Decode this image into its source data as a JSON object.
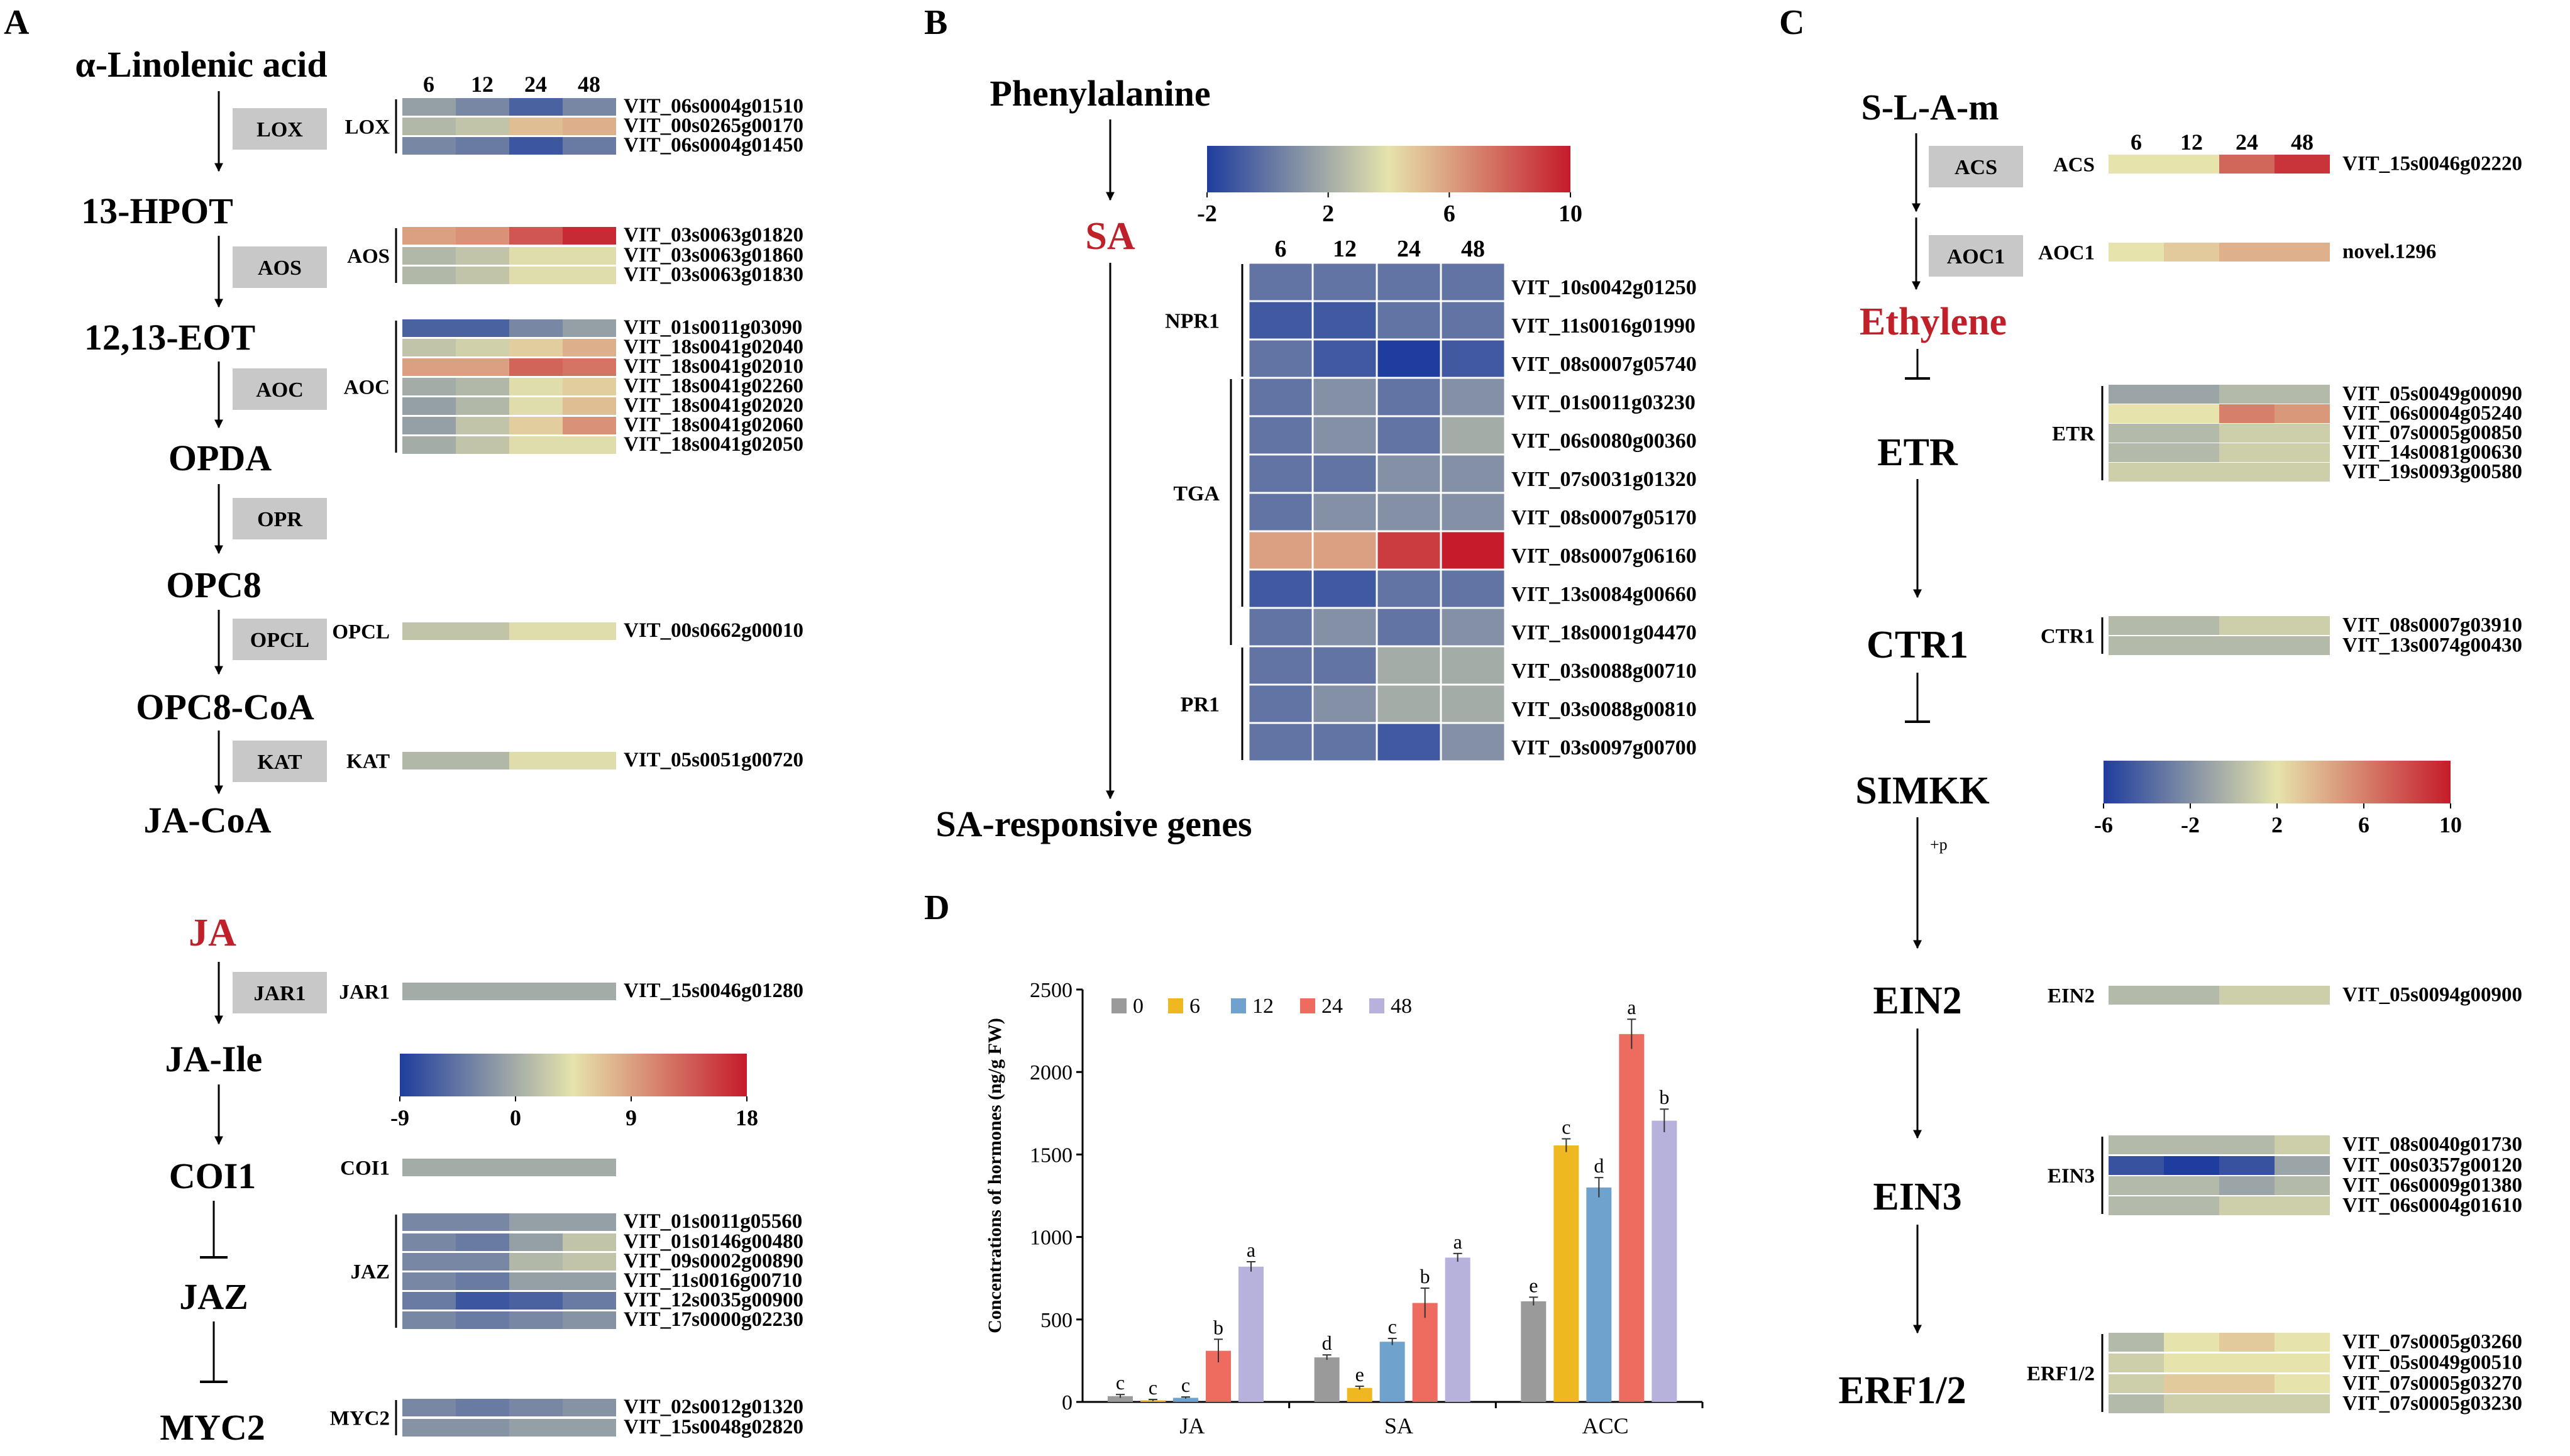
{
  "panels": {
    "A": "A",
    "B": "B",
    "C": "C",
    "D": "D"
  },
  "colors": {
    "scale_blue": "#1f3d9e",
    "scale_mid": "#e6e3ac",
    "scale_red": "#c51b2a",
    "label_red": "#c0202a",
    "enzyme_box": "#c8c8c8",
    "bar_0": "#9a9a9a",
    "bar_6": "#f0b820",
    "bar_12": "#6fa3cd",
    "bar_24": "#ee6b60",
    "bar_48": "#b6b2dc"
  },
  "heat_timepoints": [
    "6",
    "12",
    "24",
    "48"
  ],
  "panel_a": {
    "metabolites": [
      "α-Linolenic acid",
      "13-HPOT",
      "12,13-EOT",
      "OPDA",
      "OPC8",
      "OPC8-CoA",
      "JA-CoA",
      "JA",
      "JA-Ile",
      "COI1",
      "JAZ",
      "MYC2"
    ],
    "enzymes": [
      "LOX",
      "AOS",
      "AOC",
      "OPR",
      "OPCL",
      "KAT",
      "JAR1"
    ],
    "scale": {
      "ticks": [
        "-9",
        "0",
        "9",
        "18"
      ],
      "min": -9,
      "max": 18
    },
    "groups": [
      {
        "label": "LOX",
        "genes": [
          {
            "id": "VIT_06s0004g01510",
            "v": [
              -1,
              -3,
              -6,
              -3
            ]
          },
          {
            "id": "VIT_00s0265g00170",
            "v": [
              1,
              2,
              7,
              8
            ]
          },
          {
            "id": "VIT_06s0004g01450",
            "v": [
              -3,
              -4,
              -7,
              -4
            ]
          }
        ]
      },
      {
        "label": "AOS",
        "genes": [
          {
            "id": "VIT_03s0063g01820",
            "v": [
              9,
              10,
              14,
              17
            ]
          },
          {
            "id": "VIT_03s0063g01860",
            "v": [
              1,
              2,
              4,
              4
            ]
          },
          {
            "id": "VIT_03s0063g01830",
            "v": [
              1,
              2,
              4,
              4
            ]
          }
        ]
      },
      {
        "label": "AOC",
        "genes": [
          {
            "id": "VIT_01s0011g03090",
            "v": [
              -6,
              -6,
              -3,
              -1
            ]
          },
          {
            "id": "VIT_18s0041g02040",
            "v": [
              2,
              3,
              6,
              8
            ]
          },
          {
            "id": "VIT_18s0041g02010",
            "v": [
              9,
              9,
              13,
              12
            ]
          },
          {
            "id": "VIT_18s0041g02260",
            "v": [
              0,
              1,
              4,
              6
            ]
          },
          {
            "id": "VIT_18s0041g02020",
            "v": [
              -1,
              1,
              4,
              7
            ]
          },
          {
            "id": "VIT_18s0041g02060",
            "v": [
              -1,
              2,
              6,
              10
            ]
          },
          {
            "id": "VIT_18s0041g02050",
            "v": [
              0,
              2,
              4,
              4
            ]
          }
        ]
      },
      {
        "label": "OPCL",
        "genes": [
          {
            "id": "VIT_00s0662g00010",
            "v": [
              2,
              2,
              4,
              4
            ]
          }
        ]
      },
      {
        "label": "KAT",
        "genes": [
          {
            "id": "VIT_05s0051g00720",
            "v": [
              1,
              1,
              4,
              4
            ]
          }
        ]
      },
      {
        "label": "JAR1",
        "genes": [
          {
            "id": "VIT_15s0046g01280",
            "v": [
              0,
              0,
              0,
              0
            ]
          }
        ]
      },
      {
        "label": "COI1",
        "genes": [
          {
            "id": "",
            "v": [
              0,
              0,
              0,
              0
            ]
          }
        ]
      },
      {
        "label": "JAZ",
        "genes": [
          {
            "id": "VIT_01s0011g05560",
            "v": [
              -3,
              -3,
              -1,
              -1
            ]
          },
          {
            "id": "VIT_01s0146g00480",
            "v": [
              -3,
              -4,
              -1,
              2
            ]
          },
          {
            "id": "VIT_09s0002g00890",
            "v": [
              -3,
              -3,
              1,
              2
            ]
          },
          {
            "id": "VIT_11s0016g00710",
            "v": [
              -3,
              -4,
              -1,
              -1
            ]
          },
          {
            "id": "VIT_12s0035g00900",
            "v": [
              -4,
              -7,
              -6,
              -4
            ]
          },
          {
            "id": "VIT_17s0000g02230",
            "v": [
              -3,
              -4,
              -3,
              -2
            ]
          }
        ]
      },
      {
        "label": "MYC2",
        "genes": [
          {
            "id": "VIT_02s0012g01320",
            "v": [
              -3,
              -4,
              -3,
              -2
            ]
          },
          {
            "id": "VIT_15s0048g02820",
            "v": [
              -2,
              -2,
              -1,
              -1
            ]
          }
        ]
      }
    ]
  },
  "panel_b": {
    "start": "Phenylalanine",
    "hormone": "SA",
    "end": "SA-responsive genes",
    "scale": {
      "ticks": [
        "-2",
        "2",
        "6",
        "10"
      ],
      "min": -2,
      "max": 10
    },
    "groups": [
      {
        "label": "NPR1",
        "genes": [
          {
            "id": "VIT_10s0042g01250",
            "v": [
              0,
              0,
              0,
              0
            ]
          },
          {
            "id": "VIT_11s0016g01990",
            "v": [
              -1,
              -1,
              0,
              0
            ]
          },
          {
            "id": "VIT_08s0007g05740",
            "v": [
              0,
              -1,
              -2,
              -1
            ]
          }
        ]
      },
      {
        "label": "TGA",
        "genes": [
          {
            "id": "VIT_01s0011g03230",
            "v": [
              0,
              1,
              0,
              1
            ]
          },
          {
            "id": "VIT_06s0080g00360",
            "v": [
              0,
              1,
              0,
              2
            ]
          },
          {
            "id": "VIT_07s0031g01320",
            "v": [
              0,
              0,
              1,
              1
            ]
          },
          {
            "id": "VIT_08s0007g05170",
            "v": [
              0,
              1,
              1,
              1
            ]
          },
          {
            "id": "VIT_08s0007g06160",
            "v": [
              6,
              6,
              9,
              10
            ]
          },
          {
            "id": "VIT_13s0084g00660",
            "v": [
              -1,
              -1,
              0,
              0
            ]
          }
        ]
      },
      {
        "label": "",
        "genes": [
          {
            "id": "VIT_18s0001g04470",
            "v": [
              0,
              1,
              0,
              1
            ]
          }
        ]
      },
      {
        "label": "PR1",
        "genes": [
          {
            "id": "VIT_03s0088g00710",
            "v": [
              0,
              0,
              2,
              2
            ]
          },
          {
            "id": "VIT_03s0088g00810",
            "v": [
              0,
              1,
              2,
              2
            ]
          },
          {
            "id": "VIT_03s0097g00700",
            "v": [
              0,
              0,
              -1,
              1
            ]
          }
        ]
      }
    ]
  },
  "panel_c": {
    "metabolites": [
      "S-L-A-m",
      "Ethylene",
      "ETR",
      "CTR1",
      "SIMKK",
      "EIN2",
      "EIN3",
      "ERF1/2"
    ],
    "enzymes": [
      "ACS",
      "AOC1"
    ],
    "phospho_label": "+p",
    "scale": {
      "ticks": [
        "-6",
        "-2",
        "2",
        "6",
        "10"
      ],
      "min": -6,
      "max": 10
    },
    "groups": [
      {
        "label": "ACS",
        "genes": [
          {
            "id": "VIT_15s0046g02220",
            "v": [
              2,
              2,
              7,
              9
            ]
          }
        ]
      },
      {
        "label": "AOC1",
        "genes": [
          {
            "id": "novel.1296",
            "v": [
              2,
              3,
              4,
              4
            ]
          }
        ]
      },
      {
        "label": "ETR",
        "genes": [
          {
            "id": "VIT_05s0049g00090",
            "v": [
              -1,
              -1,
              0,
              0
            ]
          },
          {
            "id": "VIT_06s0004g05240",
            "v": [
              2,
              2,
              6,
              5
            ]
          },
          {
            "id": "VIT_07s0005g00850",
            "v": [
              0,
              0,
              1,
              1
            ]
          },
          {
            "id": "VIT_14s0081g00630",
            "v": [
              0,
              0,
              1,
              1
            ]
          },
          {
            "id": "VIT_19s0093g00580",
            "v": [
              1,
              1,
              1,
              1
            ]
          }
        ]
      },
      {
        "label": "CTR1",
        "genes": [
          {
            "id": "VIT_08s0007g03910",
            "v": [
              0,
              0,
              1,
              1
            ]
          },
          {
            "id": "VIT_13s0074g00430",
            "v": [
              0,
              0,
              0,
              0
            ]
          }
        ]
      },
      {
        "label": "EIN2",
        "genes": [
          {
            "id": "VIT_05s0094g00900",
            "v": [
              0,
              0,
              1,
              1
            ]
          }
        ]
      },
      {
        "label": "EIN3",
        "genes": [
          {
            "id": "VIT_08s0040g01730",
            "v": [
              0,
              0,
              0,
              1
            ]
          },
          {
            "id": "VIT_00s0357g00120",
            "v": [
              -5,
              -6,
              -5,
              -1
            ]
          },
          {
            "id": "VIT_06s0009g01380",
            "v": [
              0,
              0,
              -1,
              0
            ]
          },
          {
            "id": "VIT_06s0004g01610",
            "v": [
              0,
              0,
              1,
              1
            ]
          }
        ]
      },
      {
        "label": "ERF1/2",
        "genes": [
          {
            "id": "VIT_07s0005g03260",
            "v": [
              0,
              2,
              3,
              2
            ]
          },
          {
            "id": "VIT_05s0049g00510",
            "v": [
              1,
              2,
              2,
              2
            ]
          },
          {
            "id": "VIT_07s0005g03270",
            "v": [
              1,
              3,
              3,
              2
            ]
          },
          {
            "id": "VIT_07s0005g03230",
            "v": [
              0,
              1,
              1,
              1
            ]
          }
        ]
      }
    ]
  },
  "chart_data": {
    "type": "bar",
    "title": "",
    "ylabel": "Concentrations of  hormones (ng/g FW)",
    "xlabel": "",
    "categories": [
      "JA",
      "SA",
      "ACC"
    ],
    "ylim": [
      0,
      2500
    ],
    "yticks": [
      "0",
      "500",
      "1000",
      "1500",
      "2000",
      "2500"
    ],
    "legend_position": "top-left",
    "series": [
      {
        "name": "0",
        "values": [
          35,
          270,
          610
        ],
        "err": [
          10,
          15,
          25
        ],
        "letters": [
          "c",
          "d",
          "e"
        ]
      },
      {
        "name": "6",
        "values": [
          10,
          85,
          1555
        ],
        "err": [
          5,
          10,
          40
        ],
        "letters": [
          "c",
          "e",
          "c"
        ]
      },
      {
        "name": "12",
        "values": [
          25,
          365,
          1300
        ],
        "err": [
          5,
          20,
          60
        ],
        "letters": [
          "c",
          "c",
          "d"
        ]
      },
      {
        "name": "24",
        "values": [
          310,
          600,
          2230
        ],
        "err": [
          70,
          90,
          90
        ],
        "letters": [
          "b",
          "b",
          "a"
        ]
      },
      {
        "name": "48",
        "values": [
          820,
          875,
          1705
        ],
        "err": [
          30,
          25,
          70
        ],
        "letters": [
          "a",
          "a",
          "b"
        ]
      }
    ]
  }
}
